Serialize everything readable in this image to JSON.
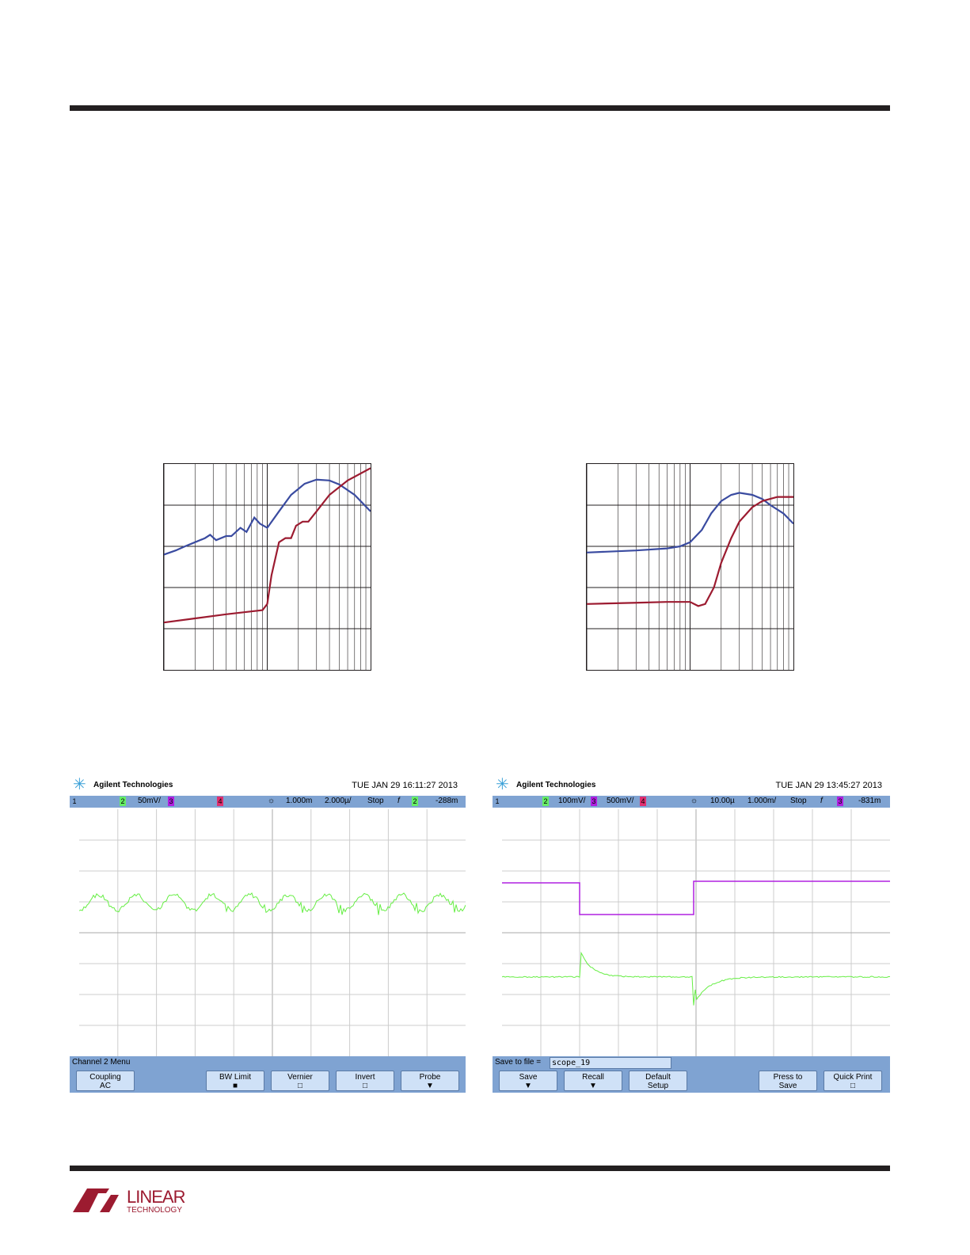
{
  "colors": {
    "blue": "#3a4ba0",
    "red": "#9c1b30",
    "green": "#66ee44",
    "purple": "#b020e0",
    "scope_bar": "#7fa3d2"
  },
  "chart_data": [
    {
      "type": "line",
      "xscale": "log",
      "xlim": [
        10,
        1000
      ],
      "ylim": [
        0,
        5
      ],
      "grid": true,
      "series": [
        {
          "color": "#3a4ba0",
          "x": [
            10,
            13,
            16,
            20,
            25,
            28,
            32,
            40,
            45,
            55,
            63,
            75,
            85,
            100,
            130,
            170,
            230,
            300,
            400,
            500,
            700,
            1000
          ],
          "y": [
            2.8,
            2.9,
            3.0,
            3.1,
            3.2,
            3.28,
            3.15,
            3.25,
            3.25,
            3.45,
            3.35,
            3.7,
            3.55,
            3.45,
            3.85,
            4.25,
            4.52,
            4.62,
            4.6,
            4.5,
            4.25,
            3.85
          ]
        },
        {
          "color": "#9c1b30",
          "x": [
            10,
            20,
            40,
            70,
            90,
            100,
            110,
            130,
            150,
            170,
            190,
            220,
            250,
            300,
            400,
            600,
            1000
          ],
          "y": [
            1.15,
            1.25,
            1.35,
            1.42,
            1.45,
            1.6,
            2.3,
            3.1,
            3.2,
            3.2,
            3.5,
            3.6,
            3.6,
            3.85,
            4.25,
            4.6,
            4.9
          ]
        }
      ]
    },
    {
      "type": "line",
      "xscale": "log",
      "xlim": [
        10,
        1000
      ],
      "ylim": [
        0,
        5
      ],
      "grid": true,
      "series": [
        {
          "color": "#3a4ba0",
          "x": [
            10,
            30,
            60,
            80,
            100,
            130,
            160,
            200,
            250,
            300,
            400,
            500,
            600,
            800,
            1000
          ],
          "y": [
            2.85,
            2.9,
            2.95,
            3.0,
            3.1,
            3.4,
            3.8,
            4.1,
            4.25,
            4.3,
            4.25,
            4.15,
            4.0,
            3.8,
            3.55
          ]
        },
        {
          "color": "#9c1b30",
          "x": [
            10,
            30,
            60,
            100,
            120,
            140,
            170,
            200,
            250,
            300,
            400,
            500,
            700,
            1000
          ],
          "y": [
            1.6,
            1.63,
            1.65,
            1.65,
            1.55,
            1.6,
            2.0,
            2.6,
            3.2,
            3.6,
            3.95,
            4.1,
            4.2,
            4.2
          ]
        }
      ]
    }
  ],
  "scope_left": {
    "brand": "Agilent Technologies",
    "date": "TUE JAN 29 16:11:27 2013",
    "status": [
      "1",
      "2",
      "50mV/",
      "3",
      "4",
      "1.000m",
      "2.000µ/",
      "Stop",
      "f",
      "2",
      "-288m"
    ],
    "menu_title": "Channel 2  Menu",
    "buttons": [
      {
        "top": "Coupling",
        "bottom": "AC"
      },
      {
        "top": "BW Limit",
        "bottom": "■"
      },
      {
        "top": "Vernier",
        "bottom": "□"
      },
      {
        "top": "Invert",
        "bottom": "□"
      },
      {
        "top": "Probe",
        "bottom": "▼"
      }
    ]
  },
  "scope_right": {
    "brand": "Agilent Technologies",
    "date": "TUE JAN 29 13:45:27 2013",
    "status": [
      "1",
      "2",
      "100mV/",
      "3",
      "500mV/",
      "4",
      "10.00µ",
      "1.000m/",
      "Stop",
      "f",
      "3",
      "-831m"
    ],
    "save_label": "Save to file =",
    "file": "scope_19",
    "buttons": [
      {
        "top": "Save",
        "bottom": "▼"
      },
      {
        "top": "Recall",
        "bottom": "▼"
      },
      {
        "top": "Default",
        "bottom": "Setup"
      },
      {
        "top": "Press to",
        "bottom": "Save"
      },
      {
        "top": "Quick Print",
        "bottom": "□"
      }
    ]
  },
  "footer": {
    "logo_text": "LINEAR",
    "logo_sub": "TECHNOLOGY"
  }
}
